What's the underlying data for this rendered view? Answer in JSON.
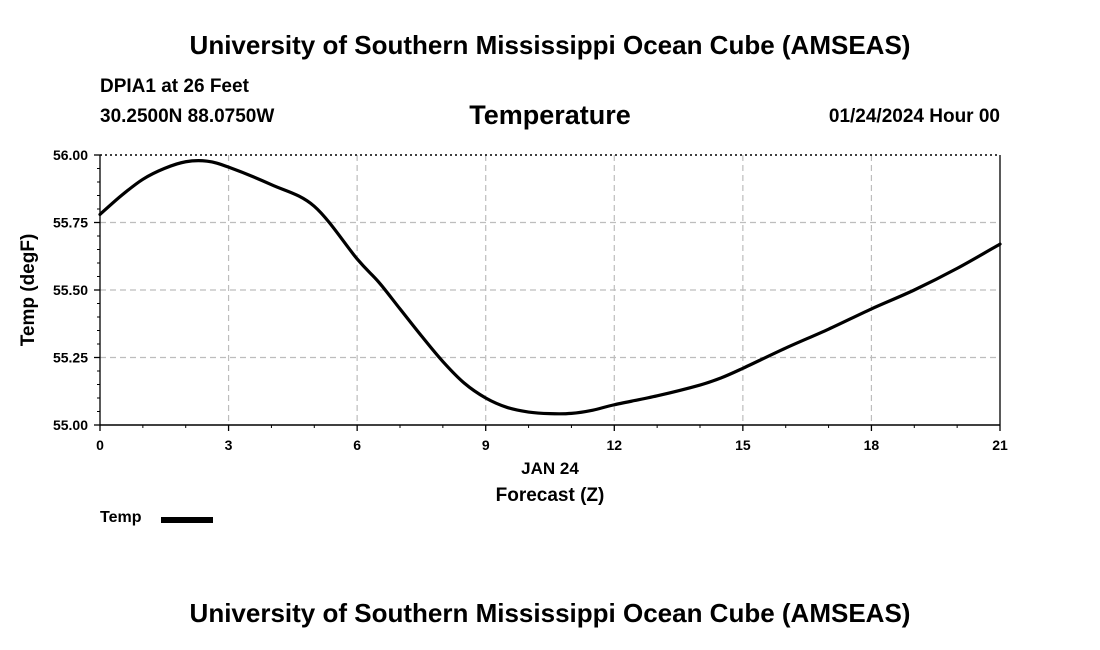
{
  "header": {
    "title": "University of Southern Mississippi Ocean Cube (AMSEAS)",
    "station": "DPIA1 at 26 Feet",
    "coords": "30.2500N  88.0750W",
    "variable_title": "Temperature",
    "datetime": "01/24/2024 Hour 00"
  },
  "footer": {
    "title": "University of Southern Mississippi Ocean Cube (AMSEAS)"
  },
  "legend": {
    "label": "Temp"
  },
  "chart_data": {
    "type": "line",
    "title": "Temperature",
    "xlabel": "Forecast (Z)",
    "xlabel_date": "JAN 24",
    "ylabel": "Temp (degF)",
    "xlim": [
      0,
      21
    ],
    "ylim": [
      55.0,
      56.0
    ],
    "xticks": [
      0,
      3,
      6,
      9,
      12,
      15,
      18,
      21
    ],
    "yticks": [
      55.0,
      55.25,
      55.5,
      55.75,
      56.0
    ],
    "ytick_labels": [
      "55.00",
      "55.25",
      "55.50",
      "55.75",
      "56.00"
    ],
    "grid": true,
    "series": [
      {
        "name": "Temp",
        "color": "#000000",
        "x": [
          0,
          0.5,
          1,
          1.5,
          2,
          2.5,
          3,
          4,
          5,
          6,
          6.5,
          7,
          7.5,
          8,
          8.5,
          9,
          9.5,
          10,
          10.5,
          11,
          11.5,
          12,
          13,
          14,
          14.5,
          15,
          16,
          17,
          18,
          19,
          20,
          21
        ],
        "y": [
          55.78,
          55.85,
          55.91,
          55.95,
          55.975,
          55.977,
          55.955,
          55.89,
          55.81,
          55.615,
          55.53,
          55.43,
          55.33,
          55.235,
          55.155,
          55.1,
          55.065,
          55.048,
          55.042,
          55.043,
          55.055,
          55.075,
          55.108,
          55.148,
          55.175,
          55.21,
          55.285,
          55.355,
          55.43,
          55.5,
          55.58,
          55.67
        ]
      }
    ]
  }
}
